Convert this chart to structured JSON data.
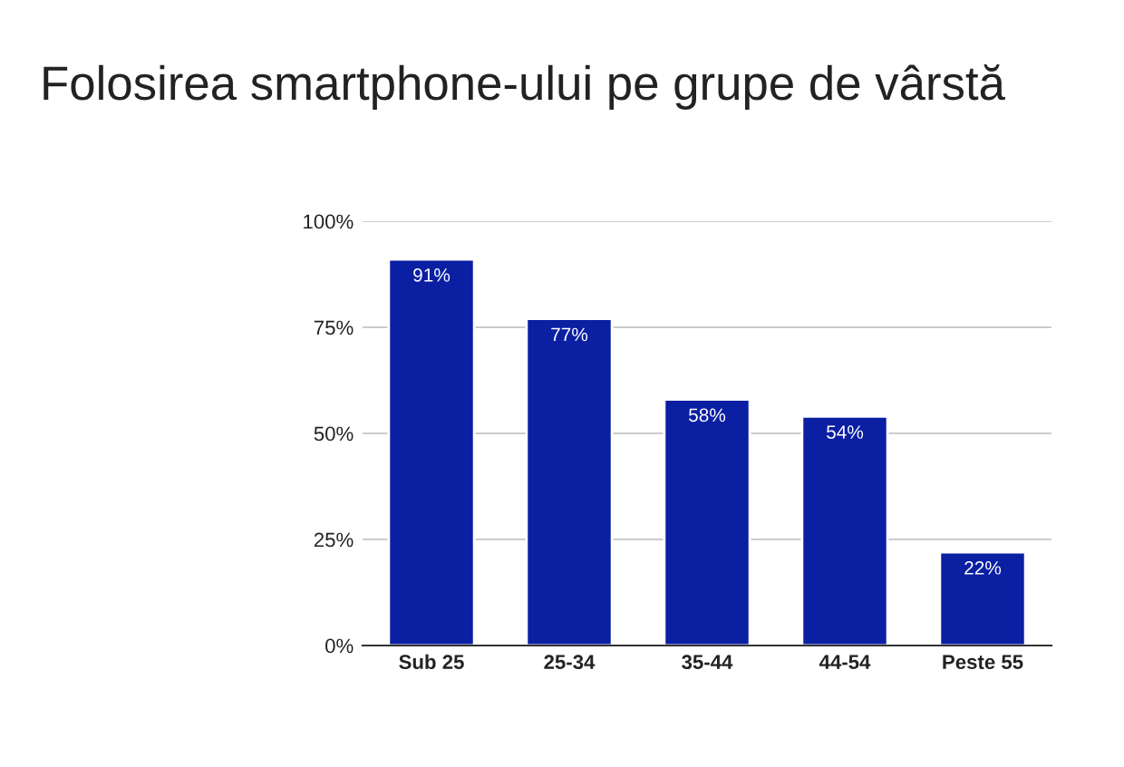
{
  "chart_data": {
    "type": "bar",
    "title": "Folosirea smartphone-ului pe grupe de vârstă",
    "categories": [
      "Sub 25",
      "25-34",
      "35-44",
      "44-54",
      "Peste 55"
    ],
    "values": [
      91,
      77,
      58,
      54,
      22
    ],
    "value_labels": [
      "91%",
      "77%",
      "58%",
      "54%",
      "22%"
    ],
    "color": "#0b1fa3",
    "ylim": [
      0,
      100
    ],
    "yticks": [
      {
        "value": 0,
        "label": "0%"
      },
      {
        "value": 25,
        "label": "25%"
      },
      {
        "value": 50,
        "label": "50%"
      },
      {
        "value": 75,
        "label": "75%"
      },
      {
        "value": 100,
        "label": "100%"
      }
    ],
    "grid": "y",
    "legend": false
  }
}
